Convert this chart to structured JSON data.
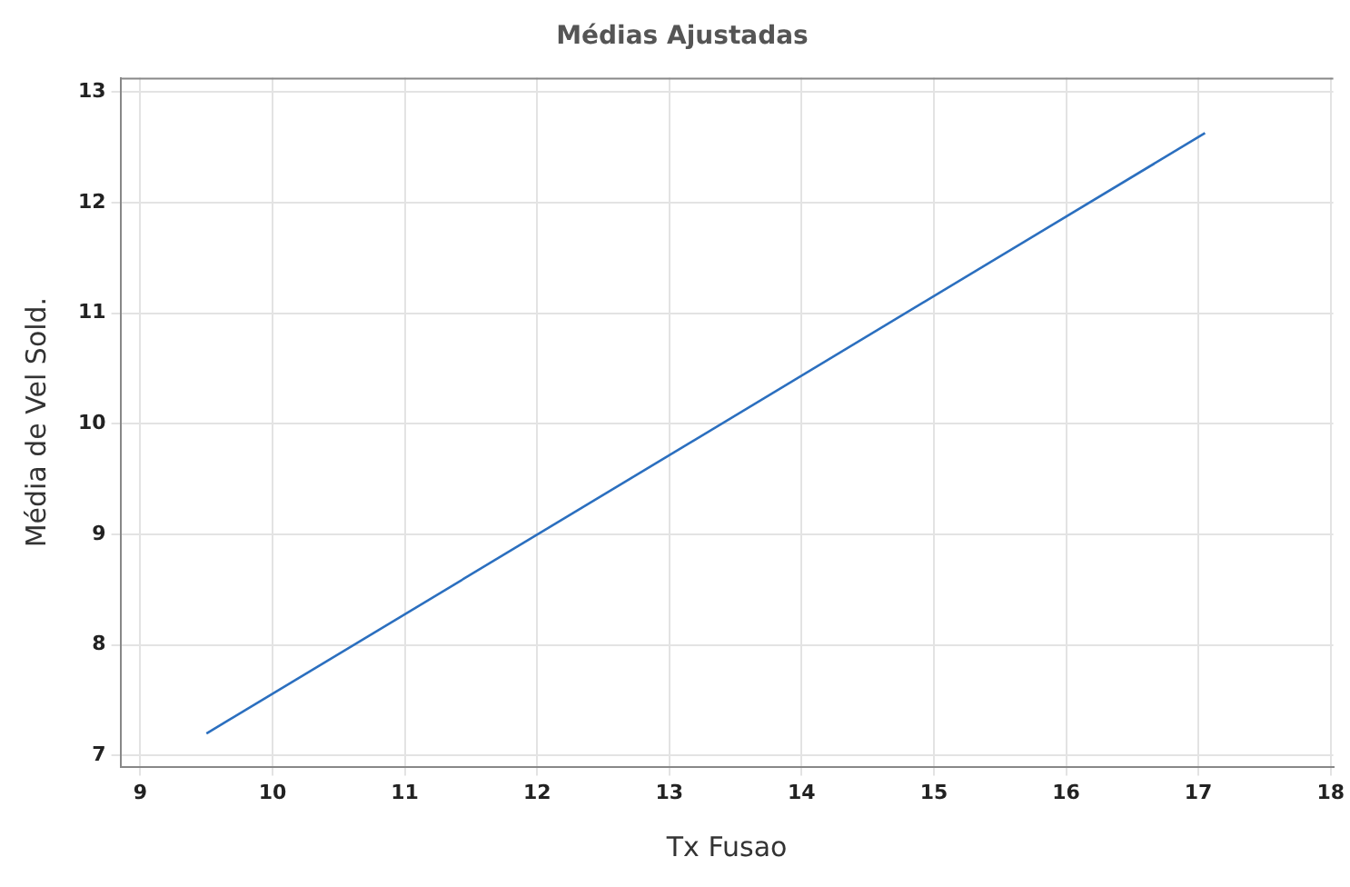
{
  "chart_data": {
    "type": "line",
    "title": "Médias Ajustadas",
    "xlabel": "Tx Fusao",
    "ylabel": "Média de Vel Sold.",
    "x": [
      9.5,
      17.05
    ],
    "series": [
      {
        "color": "#2b6fbf",
        "values": [
          7.2,
          12.63
        ]
      }
    ],
    "xlim": [
      8.85,
      18.02
    ],
    "xticks": [
      9,
      10,
      11,
      12,
      13,
      14,
      15,
      16,
      17,
      18
    ],
    "ylim": [
      6.9,
      13.13
    ],
    "yticks": [
      7,
      8,
      9,
      10,
      11,
      12,
      13
    ],
    "grid": true,
    "legend": false,
    "marker": "none",
    "line_style": "solid"
  }
}
